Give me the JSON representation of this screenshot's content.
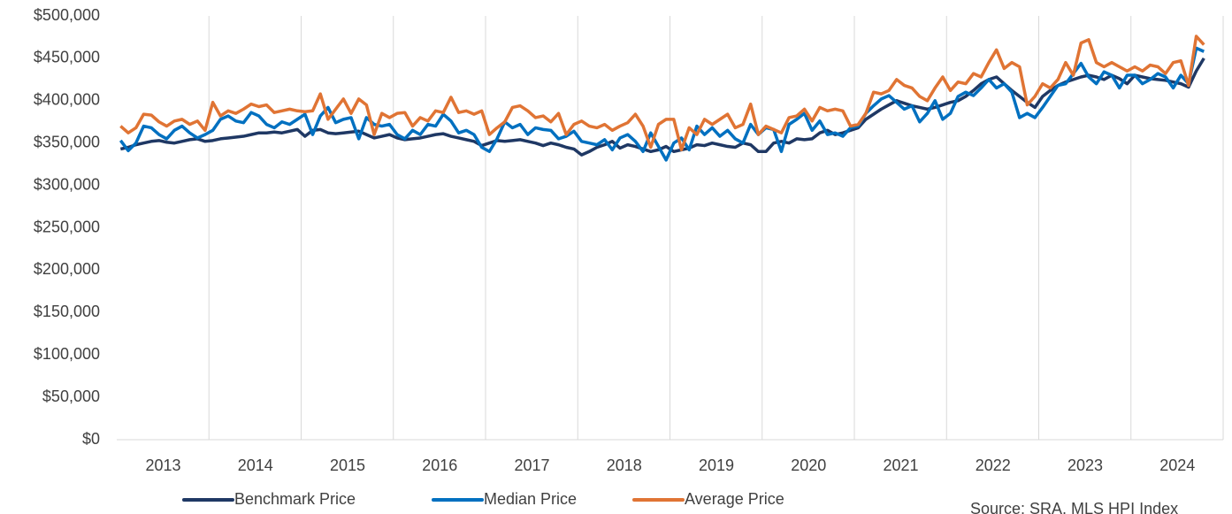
{
  "chart_data": {
    "type": "line",
    "categories": [
      null,
      null,
      null,
      null,
      null,
      null,
      "2013",
      null,
      null,
      null,
      null,
      null,
      null,
      null,
      null,
      null,
      null,
      null,
      "2014",
      null,
      null,
      null,
      null,
      null,
      null,
      null,
      null,
      null,
      null,
      null,
      "2015",
      null,
      null,
      null,
      null,
      null,
      null,
      null,
      null,
      null,
      null,
      null,
      "2016",
      null,
      null,
      null,
      null,
      null,
      null,
      null,
      null,
      null,
      null,
      null,
      "2017",
      null,
      null,
      null,
      null,
      null,
      null,
      null,
      null,
      null,
      null,
      null,
      "2018",
      null,
      null,
      null,
      null,
      null,
      null,
      null,
      null,
      null,
      null,
      null,
      "2019",
      null,
      null,
      null,
      null,
      null,
      null,
      null,
      null,
      null,
      null,
      null,
      "2020",
      null,
      null,
      null,
      null,
      null,
      null,
      null,
      null,
      null,
      null,
      null,
      "2021",
      null,
      null,
      null,
      null,
      null,
      null,
      null,
      null,
      null,
      null,
      null,
      "2022",
      null,
      null,
      null,
      null,
      null,
      null,
      null,
      null,
      null,
      null,
      null,
      "2023",
      null,
      null,
      null,
      null,
      null,
      null,
      null,
      null,
      null,
      null,
      null,
      "2024",
      null,
      null,
      null
    ],
    "series": [
      {
        "name": "Benchmark Price",
        "color": "#1f3864",
        "values": [
          343000,
          345000,
          348000,
          350000,
          352000,
          353000,
          351000,
          350000,
          352000,
          354000,
          355000,
          352000,
          353000,
          355000,
          356000,
          357000,
          358000,
          360000,
          362000,
          362000,
          363000,
          362000,
          364000,
          366000,
          358000,
          365000,
          366000,
          362000,
          361000,
          362000,
          363000,
          364000,
          360000,
          356000,
          358000,
          360000,
          356000,
          354000,
          355000,
          356000,
          358000,
          360000,
          361000,
          358000,
          356000,
          354000,
          352000,
          347000,
          350000,
          353000,
          352000,
          353000,
          354000,
          352000,
          350000,
          347000,
          350000,
          348000,
          345000,
          343000,
          336000,
          340000,
          345000,
          348000,
          352000,
          344000,
          348000,
          346000,
          343000,
          340000,
          342000,
          346000,
          340000,
          342000,
          344000,
          348000,
          347000,
          350000,
          348000,
          346000,
          345000,
          350000,
          348000,
          340000,
          340000,
          350000,
          352000,
          350000,
          355000,
          354000,
          355000,
          362000,
          365000,
          360000,
          362000,
          365000,
          368000,
          378000,
          384000,
          390000,
          395000,
          400000,
          397000,
          394000,
          392000,
          390000,
          392000,
          395000,
          398000,
          400000,
          405000,
          412000,
          420000,
          425000,
          428000,
          420000,
          412000,
          405000,
          398000,
          392000,
          405000,
          412000,
          418000,
          422000,
          425000,
          428000,
          430000,
          428000,
          425000,
          430000,
          426000,
          420000,
          430000,
          428000,
          426000,
          425000,
          424000,
          422000,
          420000,
          416000,
          435000,
          450000
        ]
      },
      {
        "name": "Median Price",
        "color": "#0070c0",
        "values": [
          353000,
          341000,
          350000,
          370000,
          368000,
          360000,
          355000,
          365000,
          370000,
          362000,
          356000,
          360000,
          365000,
          378000,
          382000,
          376000,
          374000,
          386000,
          382000,
          372000,
          368000,
          375000,
          372000,
          378000,
          384000,
          360000,
          382000,
          392000,
          374000,
          378000,
          380000,
          355000,
          380000,
          372000,
          370000,
          372000,
          360000,
          355000,
          365000,
          360000,
          372000,
          370000,
          384000,
          376000,
          362000,
          365000,
          360000,
          345000,
          340000,
          355000,
          375000,
          368000,
          372000,
          360000,
          368000,
          366000,
          365000,
          355000,
          358000,
          364000,
          352000,
          350000,
          348000,
          354000,
          342000,
          356000,
          360000,
          352000,
          340000,
          362000,
          346000,
          330000,
          350000,
          356000,
          342000,
          370000,
          360000,
          368000,
          358000,
          365000,
          355000,
          350000,
          372000,
          360000,
          368000,
          366000,
          340000,
          372000,
          378000,
          385000,
          365000,
          376000,
          360000,
          362000,
          358000,
          368000,
          370000,
          385000,
          394000,
          402000,
          406000,
          398000,
          390000,
          394000,
          375000,
          385000,
          400000,
          378000,
          385000,
          405000,
          410000,
          406000,
          415000,
          425000,
          415000,
          420000,
          410000,
          380000,
          385000,
          380000,
          392000,
          405000,
          418000,
          420000,
          432000,
          444000,
          428000,
          420000,
          434000,
          430000,
          415000,
          430000,
          430000,
          420000,
          425000,
          432000,
          428000,
          415000,
          430000,
          420000,
          462000,
          458000
        ]
      },
      {
        "name": "Average Price",
        "color": "#e07434",
        "values": [
          370000,
          362000,
          368000,
          384000,
          383000,
          375000,
          370000,
          376000,
          378000,
          372000,
          376000,
          365000,
          398000,
          382000,
          388000,
          385000,
          390000,
          396000,
          393000,
          395000,
          386000,
          388000,
          390000,
          388000,
          387000,
          388000,
          408000,
          378000,
          390000,
          402000,
          385000,
          402000,
          395000,
          360000,
          385000,
          380000,
          385000,
          386000,
          370000,
          380000,
          376000,
          388000,
          386000,
          404000,
          386000,
          388000,
          384000,
          388000,
          360000,
          368000,
          375000,
          392000,
          394000,
          388000,
          380000,
          382000,
          375000,
          385000,
          360000,
          372000,
          376000,
          370000,
          368000,
          372000,
          365000,
          370000,
          374000,
          384000,
          370000,
          345000,
          372000,
          378000,
          378000,
          342000,
          368000,
          360000,
          378000,
          372000,
          378000,
          384000,
          368000,
          372000,
          396000,
          360000,
          370000,
          366000,
          362000,
          380000,
          382000,
          390000,
          376000,
          392000,
          388000,
          390000,
          388000,
          370000,
          372000,
          385000,
          410000,
          408000,
          412000,
          425000,
          418000,
          415000,
          405000,
          400000,
          415000,
          428000,
          412000,
          422000,
          420000,
          432000,
          428000,
          445000,
          460000,
          438000,
          445000,
          440000,
          395000,
          405000,
          420000,
          415000,
          425000,
          445000,
          430000,
          468000,
          472000,
          445000,
          440000,
          445000,
          440000,
          435000,
          440000,
          435000,
          442000,
          440000,
          432000,
          445000,
          447000,
          418000,
          476000,
          466000
        ]
      }
    ],
    "ylim": [
      0,
      500000
    ],
    "yticks": [
      {
        "value": 0,
        "label": "$0"
      },
      {
        "value": 50000,
        "label": "$50,000"
      },
      {
        "value": 100000,
        "label": "$100,000"
      },
      {
        "value": 150000,
        "label": "$150,000"
      },
      {
        "value": 200000,
        "label": "$200,000"
      },
      {
        "value": 250000,
        "label": "$250,000"
      },
      {
        "value": 300000,
        "label": "$300,000"
      },
      {
        "value": 350000,
        "label": "$350,000"
      },
      {
        "value": 400000,
        "label": "$400,000"
      },
      {
        "value": 450000,
        "label": "$450,000"
      },
      {
        "value": 500000,
        "label": "$500,000"
      }
    ],
    "xgrid": true,
    "legend": "bottom",
    "source": "Source: SRA, MLS HPI Index"
  }
}
